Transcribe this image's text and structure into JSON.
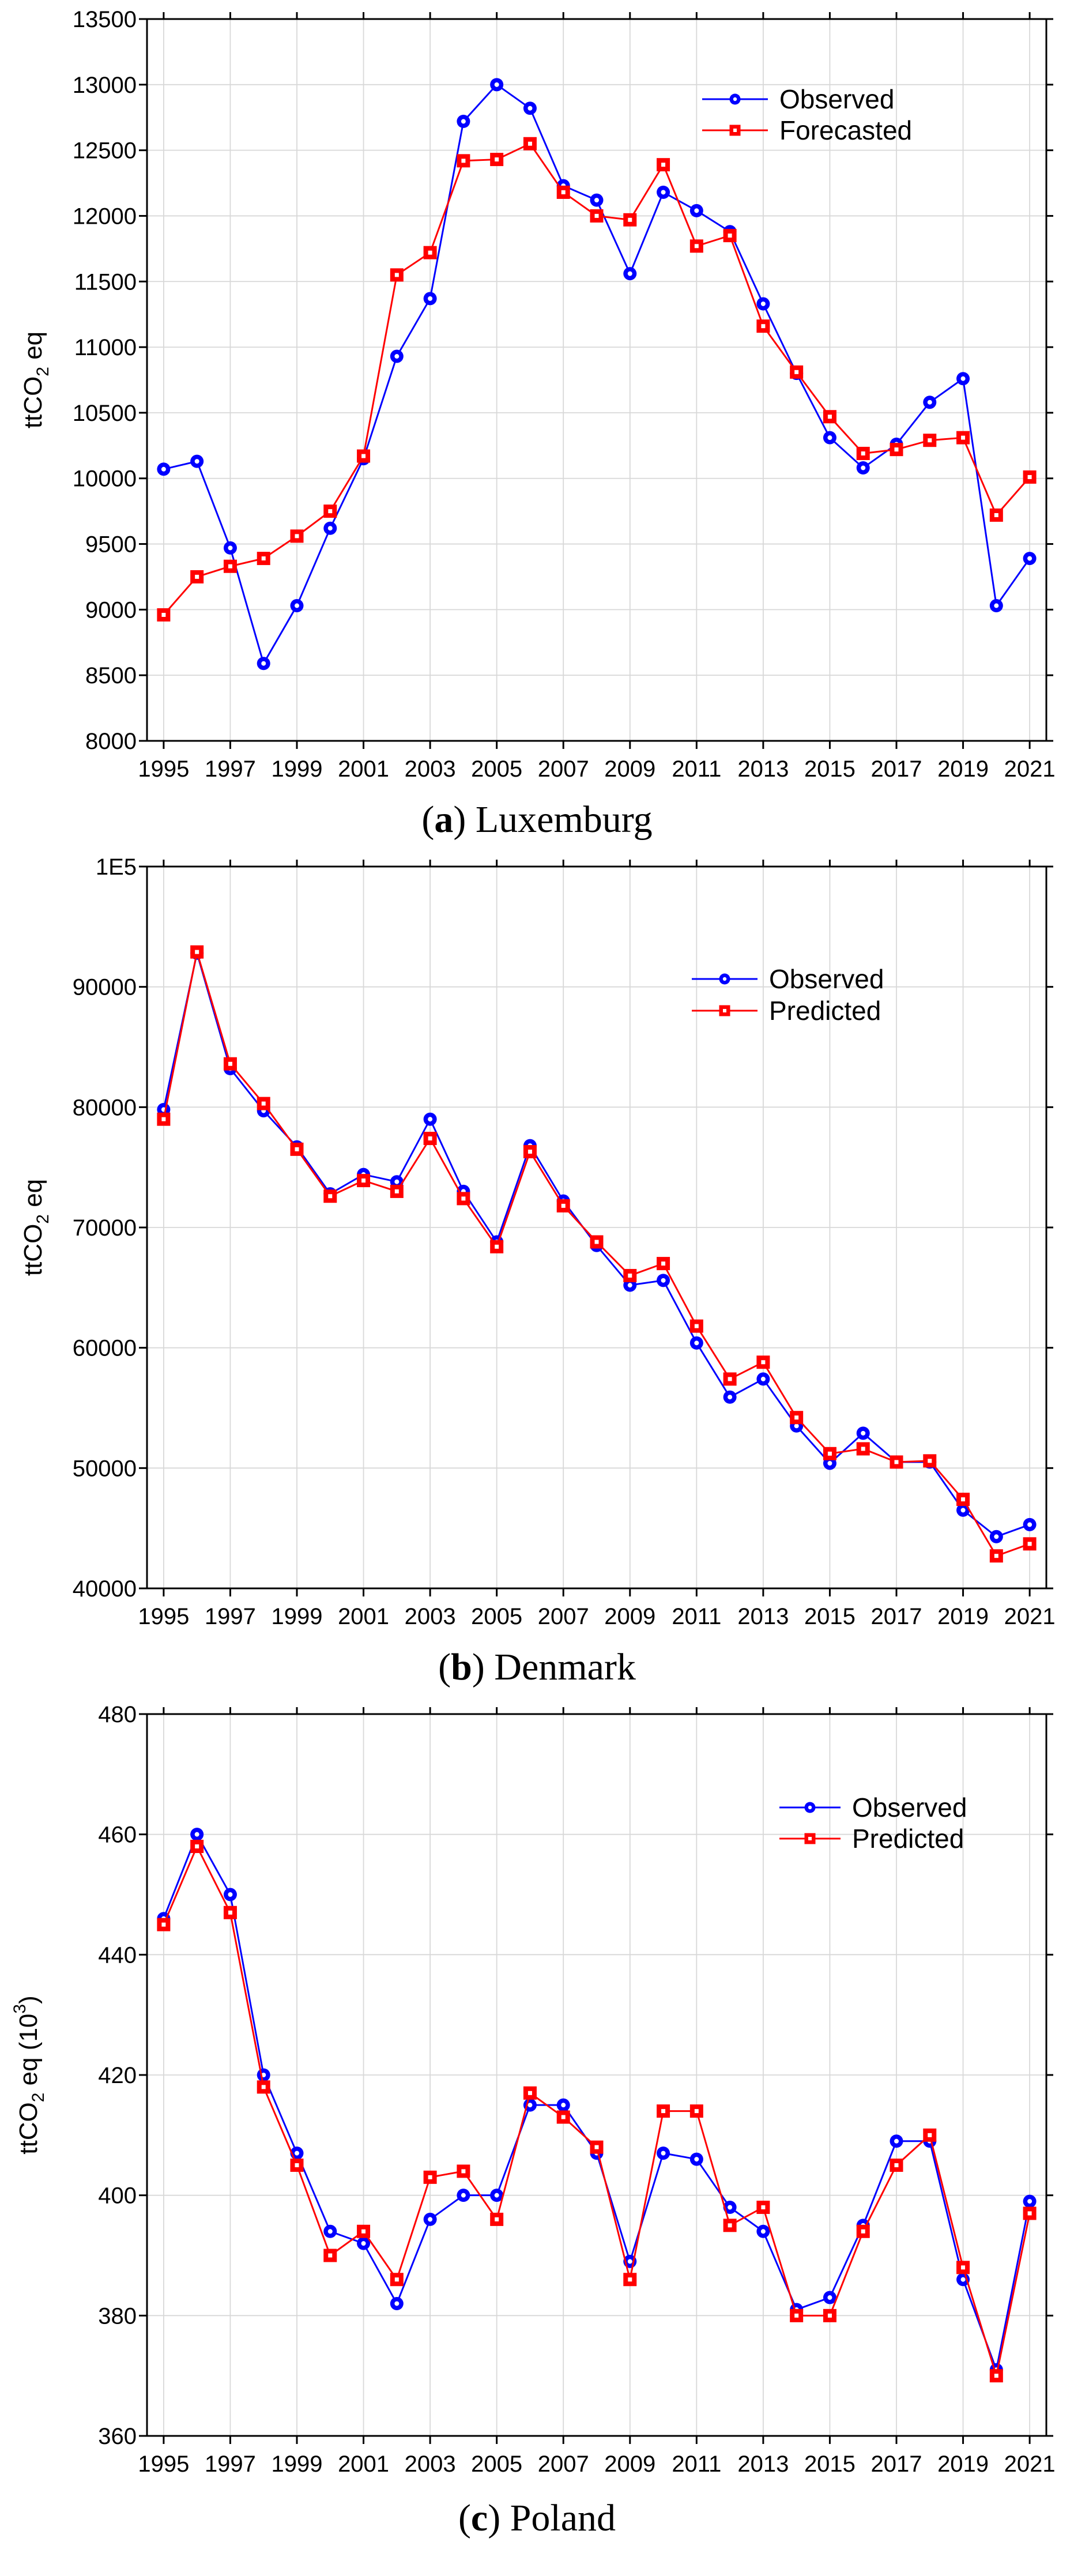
{
  "page": {
    "background": "#ffffff"
  },
  "chart_data": [
    {
      "id": "a",
      "type": "line",
      "caption": {
        "open": "(",
        "letter": "a",
        "rest": ") Luxemburg"
      },
      "ylabel_segments": [
        {
          "text": "ttCO",
          "style": "normal"
        },
        {
          "text": "2",
          "style": "sub"
        },
        {
          "text": " eq",
          "style": "normal"
        }
      ],
      "xlabel": "",
      "years": [
        1995,
        1996,
        1997,
        1998,
        1999,
        2000,
        2001,
        2002,
        2003,
        2004,
        2005,
        2006,
        2007,
        2008,
        2009,
        2010,
        2011,
        2012,
        2013,
        2014,
        2015,
        2016,
        2017,
        2018,
        2019,
        2020,
        2021
      ],
      "xtick_labels": [
        "1995",
        "1997",
        "1999",
        "2001",
        "2003",
        "2005",
        "2007",
        "2009",
        "2011",
        "2013",
        "2015",
        "2017",
        "2019",
        "2021"
      ],
      "ylim": [
        8000,
        13500
      ],
      "yticks": [
        {
          "value": 13500,
          "label": "13500"
        },
        {
          "value": 13000,
          "label": "13000"
        },
        {
          "value": 12500,
          "label": "12500"
        },
        {
          "value": 12000,
          "label": "12000"
        },
        {
          "value": 11500,
          "label": "11500"
        },
        {
          "value": 11000,
          "label": "11000"
        },
        {
          "value": 10500,
          "label": "10500"
        },
        {
          "value": 10000,
          "label": "10000"
        },
        {
          "value": 9500,
          "label": "9500"
        },
        {
          "value": 9000,
          "label": "9000"
        },
        {
          "value": 8500,
          "label": "8500"
        },
        {
          "value": 8000,
          "label": "8000"
        }
      ],
      "grid": true,
      "legend_position": "upper-right",
      "series": [
        {
          "name": "Observed",
          "color": "#0000ff",
          "marker": "circle",
          "values": [
            10070,
            10130,
            9470,
            8590,
            9030,
            9620,
            10150,
            10930,
            11370,
            12720,
            13000,
            12820,
            12230,
            12120,
            11560,
            12180,
            12040,
            11880,
            11330,
            10800,
            10310,
            10080,
            10260,
            10580,
            10760,
            9030,
            9390
          ]
        },
        {
          "name": "Forecasted",
          "color": "#ff0000",
          "marker": "square",
          "values": [
            8960,
            9250,
            9330,
            9390,
            9560,
            9750,
            10170,
            11550,
            11720,
            12420,
            12430,
            12550,
            12180,
            12000,
            11970,
            12390,
            11770,
            11850,
            11160,
            10810,
            10470,
            10190,
            10220,
            10290,
            10310,
            9720,
            10010
          ]
        }
      ]
    },
    {
      "id": "b",
      "type": "line",
      "caption": {
        "open": "(",
        "letter": "b",
        "rest": ") Denmark"
      },
      "ylabel_segments": [
        {
          "text": "ttCO",
          "style": "normal"
        },
        {
          "text": "2",
          "style": "sub"
        },
        {
          "text": " eq",
          "style": "normal"
        }
      ],
      "xlabel": "",
      "years": [
        1995,
        1996,
        1997,
        1998,
        1999,
        2000,
        2001,
        2002,
        2003,
        2004,
        2005,
        2006,
        2007,
        2008,
        2009,
        2010,
        2011,
        2012,
        2013,
        2014,
        2015,
        2016,
        2017,
        2018,
        2019,
        2020,
        2021
      ],
      "xtick_labels": [
        "1995",
        "1997",
        "1999",
        "2001",
        "2003",
        "2005",
        "2007",
        "2009",
        "2011",
        "2013",
        "2015",
        "2017",
        "2019",
        "2021"
      ],
      "ylim": [
        40000,
        100000
      ],
      "yticks": [
        {
          "value": 100000,
          "label": "1E5"
        },
        {
          "value": 90000,
          "label": "90000"
        },
        {
          "value": 80000,
          "label": "80000"
        },
        {
          "value": 70000,
          "label": "70000"
        },
        {
          "value": 60000,
          "label": "60000"
        },
        {
          "value": 50000,
          "label": "50000"
        },
        {
          "value": 40000,
          "label": "40000"
        }
      ],
      "grid": true,
      "legend_position": "upper-right",
      "series": [
        {
          "name": "Observed",
          "color": "#0000ff",
          "marker": "circle",
          "values": [
            79800,
            92800,
            83200,
            79700,
            76700,
            72800,
            74400,
            73800,
            79000,
            73000,
            68800,
            76800,
            72200,
            68500,
            65200,
            65600,
            60400,
            55900,
            57400,
            53500,
            50400,
            52900,
            50500,
            50500,
            46500,
            44300,
            45300
          ]
        },
        {
          "name": "Predicted",
          "color": "#ff0000",
          "marker": "square",
          "values": [
            79000,
            92900,
            83600,
            80300,
            76500,
            72600,
            73900,
            73000,
            77400,
            72400,
            68400,
            76300,
            71800,
            68800,
            66000,
            67000,
            61800,
            57400,
            58800,
            54200,
            51200,
            51600,
            50500,
            50600,
            47400,
            42700,
            43700
          ]
        }
      ]
    },
    {
      "id": "c",
      "type": "line",
      "caption": {
        "open": "(",
        "letter": "c",
        "rest": ") Poland"
      },
      "ylabel_segments": [
        {
          "text": "ttCO",
          "style": "normal"
        },
        {
          "text": "2",
          "style": "sub"
        },
        {
          "text": " eq (10",
          "style": "normal"
        },
        {
          "text": "3",
          "style": "sup"
        },
        {
          "text": ")",
          "style": "normal"
        }
      ],
      "xlabel": "",
      "years": [
        1995,
        1996,
        1997,
        1998,
        1999,
        2000,
        2001,
        2002,
        2003,
        2004,
        2005,
        2006,
        2007,
        2008,
        2009,
        2010,
        2011,
        2012,
        2013,
        2014,
        2015,
        2016,
        2017,
        2018,
        2019,
        2020,
        2021
      ],
      "xtick_labels": [
        "1995",
        "1997",
        "1999",
        "2001",
        "2003",
        "2005",
        "2007",
        "2009",
        "2011",
        "2013",
        "2015",
        "2017",
        "2019",
        "2021"
      ],
      "ylim": [
        360,
        480
      ],
      "yticks": [
        {
          "value": 480,
          "label": "480"
        },
        {
          "value": 460,
          "label": "460"
        },
        {
          "value": 440,
          "label": "440"
        },
        {
          "value": 420,
          "label": "420"
        },
        {
          "value": 400,
          "label": "400"
        },
        {
          "value": 380,
          "label": "380"
        },
        {
          "value": 360,
          "label": "360"
        }
      ],
      "grid": true,
      "legend_position": "upper-right",
      "series": [
        {
          "name": "Observed",
          "color": "#0000ff",
          "marker": "circle",
          "values": [
            446,
            460,
            450,
            420,
            407,
            394,
            392,
            382,
            396,
            400,
            400,
            415,
            415,
            407,
            389,
            407,
            406,
            398,
            394,
            381,
            383,
            395,
            409,
            409,
            386,
            371,
            399
          ]
        },
        {
          "name": "Predicted",
          "color": "#ff0000",
          "marker": "square",
          "values": [
            445,
            458,
            447,
            418,
            405,
            390,
            394,
            386,
            403,
            404,
            396,
            417,
            413,
            408,
            386,
            414,
            414,
            395,
            398,
            380,
            380,
            394,
            405,
            410,
            388,
            370,
            397
          ]
        }
      ]
    }
  ]
}
